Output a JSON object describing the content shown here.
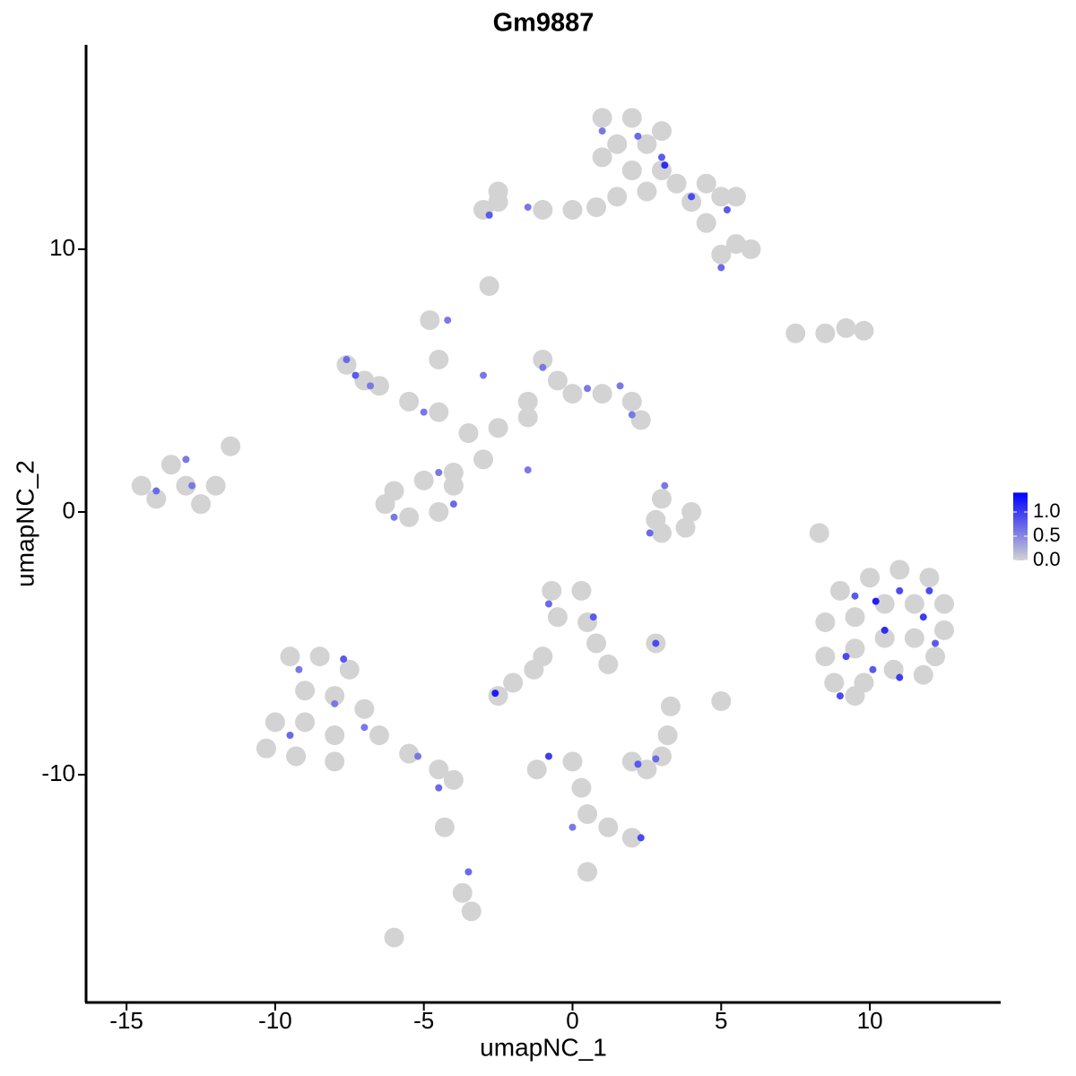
{
  "chart_data": {
    "type": "scatter",
    "title": "Gm9887",
    "x_label": "umapNC_1",
    "y_label": "umapNC_2",
    "xlim": [
      -16.36,
      14.4
    ],
    "ylim": [
      -18.67,
      17.78
    ],
    "xticks": [
      -15,
      -10,
      -5,
      0,
      5,
      10
    ],
    "yticks": [
      -10,
      0,
      10
    ],
    "colors": [
      "#d3d3d3",
      "#0000ff"
    ],
    "clim": [
      0,
      1.4
    ],
    "cticks": [
      {
        "value": 0,
        "label": "0.0"
      },
      {
        "value": 0.5,
        "label": "0.5"
      },
      {
        "value": 1,
        "label": "1.0"
      }
    ],
    "x": [
      1,
      2,
      1.5,
      2.5,
      1,
      3,
      2,
      3,
      2.5,
      3.5,
      4,
      4.5,
      5,
      5.5,
      4.5,
      5.5,
      6,
      5,
      1.5,
      0.8,
      0,
      -1,
      -2.5,
      -3,
      -2.5,
      -2.8,
      7.5,
      8.5,
      9.2,
      9.8,
      -7.6,
      -7,
      -6.5,
      -5.5,
      -4.5,
      -3.5,
      -2.5,
      -1.5,
      -0.5,
      -1,
      0,
      1,
      2,
      2.3,
      -1.5,
      -3,
      -4,
      -5,
      -6,
      -5.5,
      -4.5,
      -4,
      -6.3,
      -4.8,
      -4.5,
      -14.5,
      -13.5,
      -13,
      -12,
      -12.5,
      -14,
      -11.5,
      3,
      2.8,
      3.8,
      3,
      4,
      9,
      10,
      11,
      12,
      12.5,
      8.5,
      9.5,
      10.5,
      11.5,
      12.5,
      8.5,
      9.5,
      10.5,
      11.5,
      12.2,
      8.8,
      9.8,
      10.8,
      11.8,
      9.5,
      8.3,
      -9.5,
      -8.5,
      -7.5,
      -9,
      -8,
      -7,
      -10,
      -9,
      -8,
      -6.5,
      -10.3,
      -9.3,
      -8,
      -5.5,
      -4.5,
      -4,
      -4.3,
      -3.7,
      -3.4,
      -6,
      -0.7,
      0.3,
      -0.5,
      0.5,
      0.8,
      1.2,
      -1,
      -2,
      -2.5,
      2.8,
      -1.3,
      2,
      3,
      2.5,
      0,
      0.3,
      0.5,
      1.2,
      2,
      -1.2,
      0.5,
      3.3,
      5,
      3.2,
      1,
      2.2,
      3,
      3.1,
      4,
      5.2,
      5,
      -2.8,
      -1.5,
      -7.6,
      -7.3,
      -6.8,
      -5,
      -4.2,
      -3,
      -1,
      0.5,
      1.6,
      2,
      -6,
      -4.5,
      -4,
      -1.5,
      -14,
      -12.8,
      -13,
      3.1,
      2.6,
      9.5,
      10.2,
      11,
      11.8,
      10.5,
      9.2,
      10.1,
      11,
      12.2,
      9,
      12,
      -9.2,
      -8,
      -9.5,
      -7,
      -5.2,
      -4.5,
      -3.5,
      -7.7,
      -0.8,
      0.7,
      -2.6,
      2.8,
      2.2,
      2.8,
      2.3,
      0,
      -0.8
    ],
    "y": [
      15,
      15,
      14,
      14,
      13.5,
      14.5,
      13,
      13,
      12.2,
      12.5,
      11.8,
      12.5,
      12,
      12,
      11,
      10.2,
      10,
      9.8,
      12,
      11.6,
      11.5,
      11.5,
      11.8,
      11.5,
      12.2,
      8.6,
      6.8,
      6.8,
      7,
      6.9,
      5.6,
      5,
      4.8,
      4.2,
      3.8,
      3,
      3.2,
      4.2,
      5,
      5.8,
      4.5,
      4.5,
      4.2,
      3.5,
      3.6,
      2,
      1.5,
      1.2,
      0.8,
      -0.2,
      0,
      1,
      0.3,
      7.3,
      5.8,
      1,
      1.8,
      1,
      1,
      0.3,
      0.5,
      2.5,
      0.5,
      -0.3,
      -0.6,
      -0.8,
      0,
      -3,
      -2.5,
      -2.2,
      -2.5,
      -3.5,
      -4.2,
      -4,
      -3.5,
      -3.5,
      -4.5,
      -5.5,
      -5.2,
      -4.8,
      -4.8,
      -5.5,
      -6.5,
      -6.5,
      -6,
      -6.2,
      -7,
      -0.8,
      -5.5,
      -5.5,
      -6,
      -6.8,
      -7,
      -7.5,
      -8,
      -8,
      -8.5,
      -8.5,
      -9,
      -9.3,
      -9.5,
      -9.2,
      -9.8,
      -10.2,
      -12,
      -14.5,
      -15.2,
      -16.2,
      -3,
      -3,
      -4,
      -4.2,
      -5,
      -5.8,
      -5.5,
      -6.5,
      -7,
      -5,
      -6,
      -9.5,
      -9.3,
      -9.8,
      -9.5,
      -10.5,
      -11.5,
      -12,
      -12.4,
      -9.8,
      -13.7,
      -7.4,
      -7.2,
      -8.5,
      14.5,
      14.3,
      13.5,
      13.2,
      12,
      11.5,
      9.3,
      11.3,
      11.6,
      5.8,
      5.2,
      4.8,
      3.8,
      7.3,
      5.2,
      5.5,
      4.7,
      4.8,
      3.7,
      -0.2,
      1.5,
      0.3,
      1.6,
      0.8,
      1,
      2,
      1,
      -0.8,
      -3.2,
      -3.4,
      -3,
      -4,
      -4.5,
      -5.5,
      -6,
      -6.3,
      -5,
      -7,
      -3,
      -6,
      -7.3,
      -8.5,
      -8.2,
      -9.3,
      -10.5,
      -13.7,
      -5.6,
      -3.5,
      -4,
      -6.9,
      -5,
      -9.6,
      -9.4,
      -12.4,
      -12,
      -9.3
    ],
    "expression": [
      0,
      0,
      0,
      0,
      0,
      0,
      0,
      0,
      0,
      0,
      0,
      0,
      0,
      0,
      0,
      0,
      0,
      0,
      0,
      0,
      0,
      0,
      0,
      0,
      0,
      0,
      0,
      0,
      0,
      0,
      0,
      0,
      0,
      0,
      0,
      0,
      0,
      0,
      0,
      0,
      0,
      0,
      0,
      0,
      0,
      0,
      0,
      0,
      0,
      0,
      0,
      0,
      0,
      0,
      0,
      0,
      0,
      0,
      0,
      0,
      0,
      0,
      0,
      0,
      0,
      0,
      0,
      0,
      0,
      0,
      0,
      0,
      0,
      0,
      0,
      0,
      0,
      0,
      0,
      0,
      0,
      0,
      0,
      0,
      0,
      0,
      0,
      0,
      0,
      0,
      0,
      0,
      0,
      0,
      0,
      0,
      0,
      0,
      0,
      0,
      0,
      0,
      0,
      0,
      0,
      0,
      0,
      0,
      0,
      0,
      0,
      0,
      0,
      0,
      0,
      0,
      0,
      0,
      0,
      0,
      0,
      0,
      0,
      0,
      0,
      0,
      0,
      0,
      0,
      0,
      0,
      0,
      0.6,
      0.7,
      0.8,
      1.1,
      0.9,
      0.8,
      0.7,
      0.8,
      0.6,
      0.7,
      0.8,
      0.6,
      0.6,
      0.6,
      0.6,
      0.6,
      0.6,
      0.6,
      0.6,
      0.6,
      0.6,
      0.7,
      0.6,
      0.7,
      0.6,
      0.6,
      0.6,
      0.7,
      0.8,
      1.2,
      0.9,
      1.0,
      1.1,
      0.9,
      0.8,
      1.0,
      0.8,
      0.9,
      0.9,
      0.6,
      0.6,
      0.7,
      0.6,
      0.6,
      0.7,
      0.7,
      0.8,
      0.7,
      0.8,
      1.2,
      0.9,
      0.8,
      0.7,
      0.9,
      0.6,
      1.0
    ]
  }
}
